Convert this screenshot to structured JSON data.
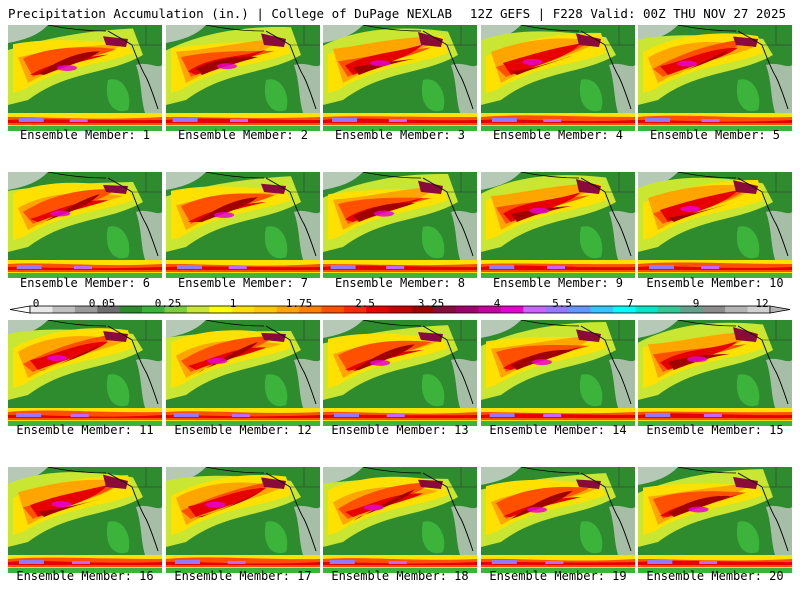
{
  "header": {
    "title": "Precipitation Accumulation (in.) | College of DuPage NEXLAB",
    "run_info": "12Z GEFS | F228 Valid: 00Z THU NOV 27 2025"
  },
  "panels": [
    {
      "label": "Ensemble Member: 1"
    },
    {
      "label": "Ensemble Member: 2"
    },
    {
      "label": "Ensemble Member: 3"
    },
    {
      "label": "Ensemble Member: 4"
    },
    {
      "label": "Ensemble Member: 5"
    },
    {
      "label": "Ensemble Member: 6"
    },
    {
      "label": "Ensemble Member: 7"
    },
    {
      "label": "Ensemble Member: 8"
    },
    {
      "label": "Ensemble Member: 9"
    },
    {
      "label": "Ensemble Member: 10"
    },
    {
      "label": "Ensemble Member: 11"
    },
    {
      "label": "Ensemble Member: 12"
    },
    {
      "label": "Ensemble Member: 13"
    },
    {
      "label": "Ensemble Member: 14"
    },
    {
      "label": "Ensemble Member: 15"
    },
    {
      "label": "Ensemble Member: 16"
    },
    {
      "label": "Ensemble Member: 17"
    },
    {
      "label": "Ensemble Member: 18"
    },
    {
      "label": "Ensemble Member: 19"
    },
    {
      "label": "Ensemble Member: 20"
    }
  ],
  "colorbar": {
    "tick_labels": [
      "0",
      "0.05",
      "0.25",
      "1",
      "1.75",
      "2.5",
      "3.25",
      "4",
      "5.5",
      "7",
      "9",
      "12"
    ],
    "colors": [
      "#e8e8e8",
      "#c0c0c0",
      "#9a9a9a",
      "#6e6e6e",
      "#2e8b2e",
      "#3cb43c",
      "#7ccd3c",
      "#c8e632",
      "#ffff00",
      "#ffe100",
      "#ffc800",
      "#ffa500",
      "#ff7f00",
      "#ff5000",
      "#ff2800",
      "#e60000",
      "#c80000",
      "#a00000",
      "#8b0a3c",
      "#a0006e",
      "#c800a0",
      "#e600d2",
      "#c864ff",
      "#9678ff",
      "#6496ff",
      "#32c8ff",
      "#00ffff",
      "#00e6c8",
      "#32c896",
      "#64a08c",
      "#8c8c8c",
      "#b4b4b4",
      "#d2d2d2"
    ]
  }
}
